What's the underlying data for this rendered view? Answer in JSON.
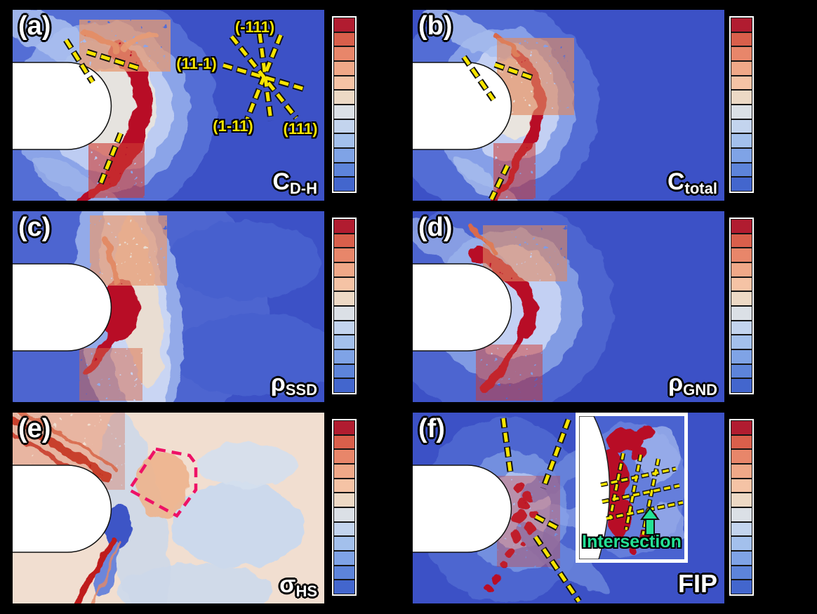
{
  "figure": {
    "panels": [
      {
        "letter": "(a)",
        "metric_main": "C",
        "metric_sub": "D-H"
      },
      {
        "letter": "(b)",
        "metric_main": "C",
        "metric_sub": "total"
      },
      {
        "letter": "(c)",
        "metric_main": "ρ",
        "metric_sub": "SSD"
      },
      {
        "letter": "(d)",
        "metric_main": "ρ",
        "metric_sub": "GND"
      },
      {
        "letter": "(e)",
        "metric_main": "σ",
        "metric_sub": "HS"
      },
      {
        "letter": "(f)",
        "metric_main": "FIP",
        "metric_sub": ""
      }
    ],
    "slip_labels": {
      "top": "(-111)",
      "left": "(11-1)",
      "bottom_left": "(1-11)",
      "bottom_right": "(111)"
    },
    "inset_caption": "Intersection",
    "colors": {
      "slip_trace_yellow": "#f7e400",
      "intersection_green": "#23e295",
      "hotspot_outline_magenta": "#ee1166",
      "field_blue": "#3c51c6",
      "hot_red": "#b80f26",
      "panel_label_white": "#ffffff"
    },
    "colorbar_segments": [
      "#b11c30",
      "#d95f4b",
      "#e8866a",
      "#f0a888",
      "#f5c3a5",
      "#edd9c5",
      "#dbe0e6",
      "#c3d4ee",
      "#a3c0ec",
      "#7fa3e6",
      "#5d84da",
      "#4366cd"
    ]
  },
  "chart_data": [
    {
      "type": "heatmap",
      "panel": "(a)",
      "quantity": "C_D-H (deuterium-hydrogen concentration)",
      "colormap": "diverging red-blue (coolwarm), 12 discrete levels",
      "colorbar_ticks": "none (unlabeled)",
      "legend_position": "right",
      "axes": "none (2D field around a rounded notch)",
      "annotations": [
        "slip-plane trace star labeled (-111), (11-1), (1-11), (111)",
        "three yellow dashed slip traces near notch tip"
      ],
      "qualitative_pattern": "high (red) band hugging the notch tip arcing down-left; far field uniform blue"
    },
    {
      "type": "heatmap",
      "panel": "(b)",
      "quantity": "C_total (total concentration)",
      "colormap": "diverging red-blue (coolwarm), 12 discrete levels",
      "colorbar_ticks": "none (unlabeled)",
      "legend_position": "right",
      "axes": "none (2D field around a rounded notch)",
      "annotations": [
        "three yellow dashed slip traces near notch tip"
      ],
      "qualitative_pattern": "narrow red band at notch tip with thin red streak running down-left; blue far field"
    },
    {
      "type": "heatmap",
      "panel": "(c)",
      "quantity": "ρ_SSD (statistically stored dislocation density)",
      "colormap": "diverging red-blue (coolwarm), 12 discrete levels",
      "colorbar_ticks": "none (unlabeled)",
      "legend_position": "right",
      "axes": "none (2D field around a rounded notch)",
      "annotations": [],
      "qualitative_pattern": "intense red blob at notch tip, broad pale vertical band through centre, blue lobes right"
    },
    {
      "type": "heatmap",
      "panel": "(d)",
      "quantity": "ρ_GND (geometrically necessary dislocation density)",
      "colormap": "diverging red-blue (coolwarm), 12 discrete levels",
      "colorbar_ticks": "none (unlabeled)",
      "legend_position": "right",
      "axes": "none (2D field around a rounded notch)",
      "annotations": [],
      "qualitative_pattern": "red band along notch top and tip with long red tail down-left; light blue halo"
    },
    {
      "type": "heatmap",
      "panel": "(e)",
      "quantity": "σ_HS (hydrostatic stress)",
      "colormap": "diverging red-blue (coolwarm), 12 discrete levels",
      "colorbar_ticks": "none (unlabeled)",
      "legend_position": "right",
      "axes": "none (2D field around a rounded notch)",
      "annotations": [
        "magenta dashed polygon outlining hydrostatic-stress hot region ahead of the tip"
      ],
      "qualitative_pattern": "pale warm far field; red streaks from top-left; dark blue pocket at tip; red streak down-left"
    },
    {
      "type": "heatmap",
      "panel": "(f)",
      "quantity": "FIP (fatigue indicator parameter)",
      "colormap": "diverging red-blue (coolwarm), 12 discrete levels",
      "colorbar_ticks": "none (unlabeled)",
      "legend_position": "right",
      "axes": "none (2D field around a rounded notch)",
      "annotations": [
        "four yellow dashed slip traces radiating from tip",
        "white-framed zoom inset with crossing yellow dashed slip traces",
        "green arrow and caption 'Intersection' marking slip-trace crossing"
      ],
      "qualitative_pattern": "scattered red hot spots at notch tip where slip traces intersect; blue elsewhere"
    }
  ]
}
